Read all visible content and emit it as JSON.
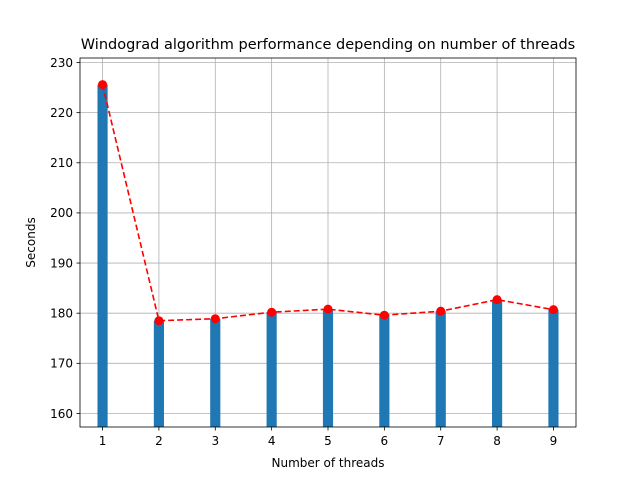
{
  "chart_data": {
    "type": "bar",
    "title": "Windograd algorithm performance depending on number of threads",
    "xlabel": "Number of threads",
    "ylabel": "Seconds",
    "categories": [
      "1",
      "2",
      "3",
      "4",
      "5",
      "6",
      "7",
      "8",
      "9"
    ],
    "x": [
      1,
      2,
      3,
      4,
      5,
      6,
      7,
      8,
      9
    ],
    "values": [
      225.6,
      178.5,
      178.9,
      180.2,
      180.8,
      179.6,
      180.4,
      182.7,
      180.7
    ],
    "line_overlay": {
      "style": "dashed",
      "marker": "circle"
    },
    "xlim": [
      0.6,
      9.4
    ],
    "ylim": [
      157.3,
      230.9
    ],
    "yticks": [
      160,
      170,
      180,
      190,
      200,
      210,
      220,
      230
    ],
    "xticks": [
      1,
      2,
      3,
      4,
      5,
      6,
      7,
      8,
      9
    ],
    "grid": true,
    "legend": "none",
    "colors": {
      "bar": "#1f77b4",
      "line": "#ff0000",
      "grid": "#b0b0b0"
    }
  }
}
